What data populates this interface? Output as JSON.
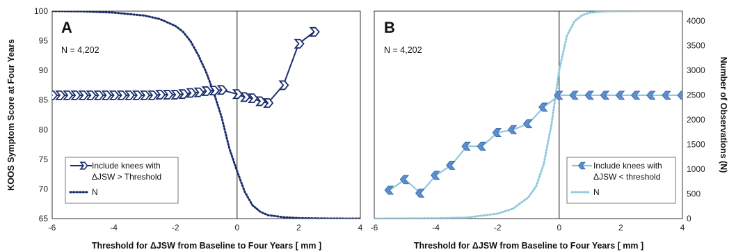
{
  "colors": {
    "dark": "#1b2e6b",
    "light": "#8dc9dc",
    "marker_light": "#5b8fd0"
  },
  "chart_data": [
    {
      "panel": "A",
      "type": "line",
      "annotation": "N = 4,202",
      "xlabel": "Threshold for ΔJSW from Baseline to Four Years [ mm ]",
      "ylabel": "KOOS Symptom Score at Four Years",
      "xlim": [
        -6,
        4
      ],
      "ylim": [
        65,
        100
      ],
      "xticks": [
        "-6",
        "-4",
        "-2",
        "0",
        "2",
        "4"
      ],
      "yticks": [
        "65",
        "70",
        "75",
        "80",
        "85",
        "90",
        "95",
        "100"
      ],
      "n_max": 4202,
      "series": [
        {
          "name": "Include knees with ΔJSW > Threshold",
          "style": "solid-marker-right",
          "x": [
            -6,
            -5.75,
            -5.5,
            -5.25,
            -5,
            -4.75,
            -4.5,
            -4.25,
            -4,
            -3.75,
            -3.5,
            -3.25,
            -3,
            -2.75,
            -2.5,
            -2.25,
            -2,
            -1.75,
            -1.5,
            -1.25,
            -1,
            -0.75,
            -0.5,
            0,
            0.25,
            0.5,
            0.75,
            1,
            1.5,
            2,
            2.5
          ],
          "y": [
            85.8,
            85.8,
            85.8,
            85.8,
            85.8,
            85.8,
            85.8,
            85.8,
            85.8,
            85.8,
            85.8,
            85.8,
            85.8,
            85.8,
            85.9,
            85.9,
            85.9,
            86.0,
            86.2,
            86.3,
            86.5,
            86.6,
            86.7,
            86.0,
            85.5,
            85.3,
            84.8,
            84.5,
            87.5,
            94.5,
            96.5
          ]
        },
        {
          "name": "N",
          "style": "dotted",
          "x": [
            -6,
            -5,
            -4,
            -3,
            -2.5,
            -2,
            -1.75,
            -1.5,
            -1.25,
            -1,
            -0.75,
            -0.5,
            -0.25,
            0,
            0.25,
            0.5,
            0.75,
            1,
            1.5,
            2,
            3,
            4
          ],
          "y": [
            4202,
            4195,
            4170,
            4110,
            4040,
            3900,
            3780,
            3580,
            3300,
            2960,
            2540,
            2050,
            1420,
            960,
            540,
            270,
            140,
            70,
            28,
            10,
            2,
            0
          ]
        }
      ]
    },
    {
      "panel": "B",
      "type": "line",
      "annotation": "N = 4,202",
      "xlabel": "Threshold for ΔJSW from Baseline to Four Years [ mm ]",
      "ylabel": "Number of Observations (N)",
      "xlim": [
        -6,
        4
      ],
      "ylim": [
        0,
        4200
      ],
      "xticks": [
        "-6",
        "-4",
        "-2",
        "0",
        "2",
        "4"
      ],
      "yticks": [
        "0",
        "500",
        "1000",
        "1500",
        "2000",
        "2500",
        "3000",
        "3500",
        "4000"
      ],
      "koos_ylim": [
        65,
        100
      ],
      "series": [
        {
          "name": "Include knees with ΔJSW < threshold",
          "style": "solid-marker-left",
          "x": [
            -5.5,
            -5.0,
            -4.5,
            -4.0,
            -3.5,
            -3.0,
            -2.5,
            -2.0,
            -1.5,
            -1.0,
            -0.5,
            0,
            0.5,
            1,
            1.5,
            2,
            2.5,
            3,
            3.5,
            4
          ],
          "y": [
            69.8,
            71.6,
            69.3,
            72.3,
            74.0,
            77.2,
            77.2,
            79.5,
            80.0,
            81.0,
            83.8,
            85.8,
            85.8,
            85.8,
            85.8,
            85.8,
            85.8,
            85.8,
            85.8,
            85.8
          ]
        },
        {
          "name": "N",
          "style": "dotted",
          "x": [
            -6,
            -4,
            -3,
            -2,
            -1.5,
            -1.0,
            -0.75,
            -0.5,
            -0.25,
            0,
            0.25,
            0.5,
            0.75,
            1.0,
            1.5,
            2,
            3,
            4
          ],
          "y": [
            0,
            5,
            20,
            100,
            200,
            430,
            650,
            1100,
            1900,
            3000,
            3700,
            4000,
            4120,
            4170,
            4195,
            4200,
            4202,
            4202
          ]
        }
      ]
    }
  ]
}
